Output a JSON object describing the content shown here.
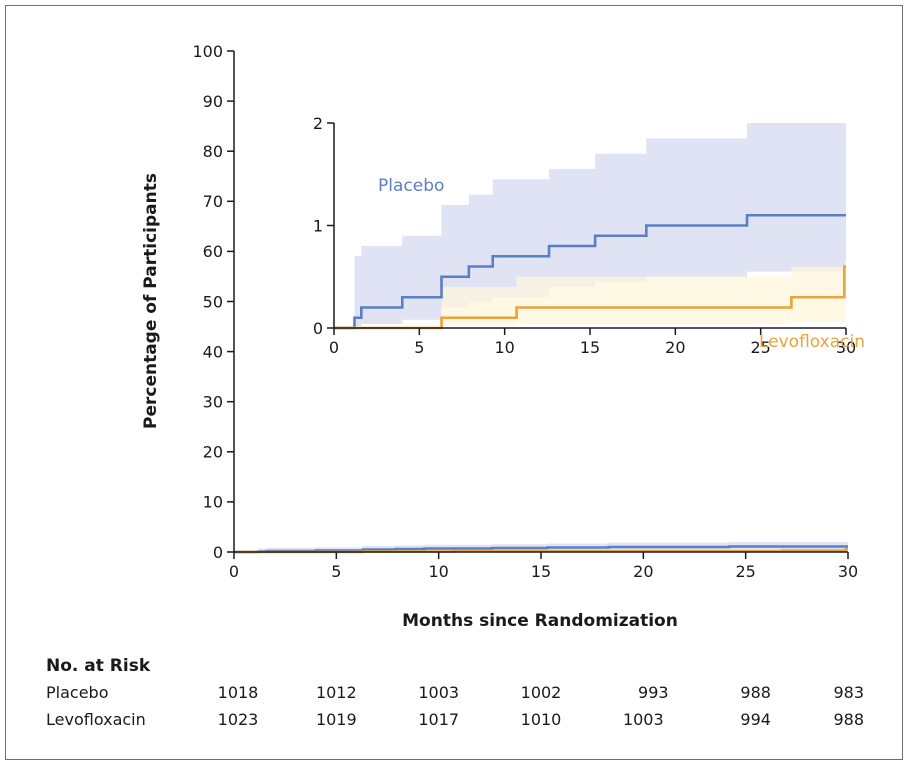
{
  "colors": {
    "placebo": "#5b7fc4",
    "levofloxacin": "#eaa23a",
    "placebo_band": "#dfe3f4",
    "levofloxacin_band": "#fdf6dc",
    "overlap_band": "#ebe7e1",
    "axis": "#1a1a1a"
  },
  "chart_data": [
    {
      "type": "line",
      "subtype": "kaplan-meier-cumulative-incidence",
      "xlabel": "Months since Randomization",
      "ylabel": "Percentage of Participants",
      "xlim": [
        0,
        30
      ],
      "ylim": [
        0,
        100
      ],
      "x_ticks": [
        "0",
        "5",
        "10",
        "15",
        "20",
        "25",
        "30"
      ],
      "y_ticks": [
        "0",
        "10",
        "20",
        "30",
        "40",
        "50",
        "60",
        "70",
        "80",
        "90",
        "100"
      ],
      "series": [
        {
          "name": "Placebo",
          "step_x": [
            0,
            1.2,
            1.6,
            4.0,
            6.3,
            7.9,
            9.3,
            12.6,
            15.3,
            18.3,
            24.2,
            30
          ],
          "step_y": [
            0,
            0.1,
            0.2,
            0.3,
            0.5,
            0.6,
            0.7,
            0.8,
            0.9,
            1.0,
            1.1,
            1.1
          ],
          "ci_low": [
            0,
            0.02,
            0.04,
            0.08,
            0.2,
            0.25,
            0.3,
            0.4,
            0.45,
            0.5,
            0.55,
            0.55
          ],
          "ci_high": [
            0,
            0.7,
            0.8,
            0.9,
            1.2,
            1.3,
            1.45,
            1.55,
            1.7,
            1.85,
            2.0,
            2.0
          ]
        },
        {
          "name": "Levofloxacin",
          "step_x": [
            0,
            6.3,
            10.7,
            26.8,
            29.9,
            30
          ],
          "step_y": [
            0,
            0.1,
            0.2,
            0.3,
            0.6,
            0.6
          ],
          "ci_low": [
            0,
            0.02,
            0.04,
            0.06,
            0.1,
            0.1
          ],
          "ci_high": [
            0,
            0.4,
            0.5,
            0.6,
            0.65,
            0.65
          ]
        }
      ]
    },
    {
      "type": "line",
      "subtype": "inset-zoom",
      "xlim": [
        0,
        30
      ],
      "ylim": [
        0,
        2
      ],
      "x_ticks": [
        "0",
        "5",
        "10",
        "15",
        "20",
        "25",
        "30"
      ],
      "y_ticks": [
        "0",
        "1",
        "2"
      ],
      "series_labels": [
        "Placebo",
        "Levofloxacin"
      ]
    }
  ],
  "risk_table": {
    "title": "No. at Risk",
    "rows": [
      {
        "label": "Placebo",
        "values": [
          "1018",
          "1012",
          "1003",
          "1002",
          "993",
          "988",
          "983"
        ]
      },
      {
        "label": "Levofloxacin",
        "values": [
          "1023",
          "1019",
          "1017",
          "1010",
          "1003",
          "994",
          "988"
        ]
      }
    ]
  }
}
